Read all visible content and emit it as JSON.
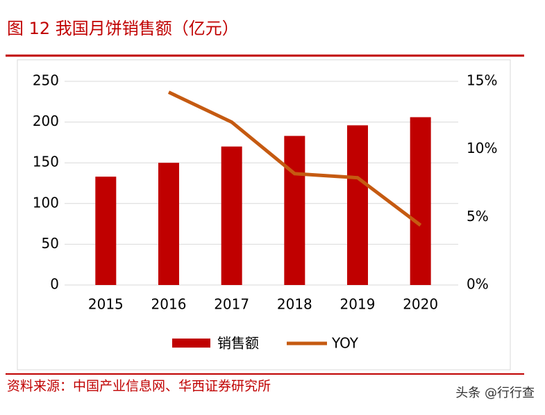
{
  "title": "图 12 我国月饼销售额（亿元）",
  "source": "资料来源：中国产业信息网、华西证券研究所",
  "watermark": "头条 @行行查",
  "chart_data": {
    "type": "bar_line",
    "categories": [
      "2015",
      "2016",
      "2017",
      "2018",
      "2019",
      "2020"
    ],
    "series": [
      {
        "name": "销售额",
        "type": "bar",
        "color": "#c00000",
        "values": [
          133,
          150,
          170,
          183,
          196,
          206
        ]
      },
      {
        "name": "YOY",
        "type": "line",
        "axis": "y2",
        "color": "#c55a11",
        "values": [
          null,
          14.2,
          12.0,
          8.2,
          7.9,
          4.4
        ]
      }
    ],
    "ylim": [
      0,
      250
    ],
    "yticks": [
      0,
      50,
      100,
      150,
      200,
      250
    ],
    "y2lim": [
      0,
      15
    ],
    "y2ticks": [
      {
        "value": 0,
        "label": "0%"
      },
      {
        "value": 5,
        "label": "5%"
      },
      {
        "value": 10,
        "label": "10%"
      },
      {
        "value": 15,
        "label": "15%"
      }
    ],
    "grid": true,
    "legend": "bottom"
  }
}
